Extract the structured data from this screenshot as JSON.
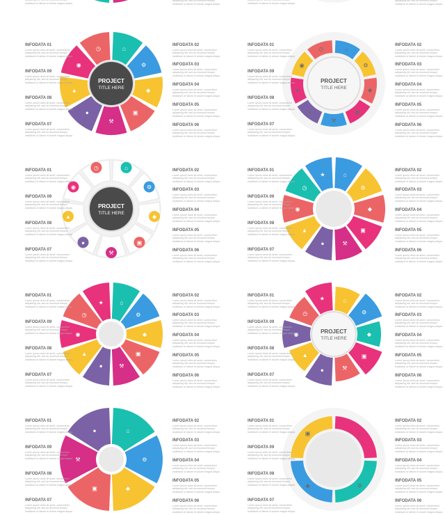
{
  "labels": {
    "d01": "INFODATA 01",
    "d02": "INFODATA 02",
    "d03": "INFODATA 03",
    "d04": "INFODATA 04",
    "d05": "INFODATA 05",
    "d06": "INFODATA 06",
    "d07": "INFODATA 07",
    "d08": "INFODATA 08",
    "d09": "INFODATA 09"
  },
  "body_text": "Lorem ipsum dolor sit amet, consectetur adipiscing elit, sed do eiusmod tempor incididunt ut labore et dolore magna aliqua.",
  "center": {
    "line1": "PROJECT",
    "line2": "TITLE HERE"
  },
  "colors": {
    "pink": "#e8327c",
    "teal": "#1bbfb0",
    "blue": "#3a9be0",
    "yellow": "#f7c331",
    "coral": "#ec6566",
    "purple": "#7b62a6",
    "magenta": "#d62f87",
    "gray": "#6b6b6b",
    "light": "#f2f2f2"
  },
  "icons": [
    "home-icon",
    "gear-icon",
    "tag-icon",
    "briefcase-icon",
    "gavel-icon",
    "user-icon",
    "chart-icon",
    "map-pin-icon",
    "clock-icon",
    "star-icon"
  ]
}
